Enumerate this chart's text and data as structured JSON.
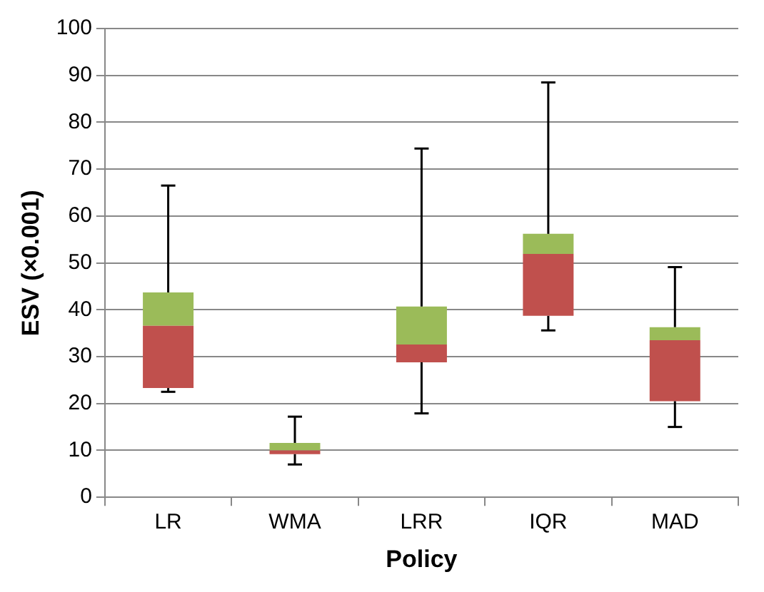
{
  "chart_data": {
    "type": "box",
    "xlabel": "Policy",
    "ylabel": "ESV (×0.001)",
    "categories": [
      "LR",
      "WMA",
      "LRR",
      "IQR",
      "MAD"
    ],
    "colors": [
      [
        "#c0504d",
        "#9bbb59"
      ],
      [
        "#c0504d",
        "#9bbb59"
      ],
      [
        "#c0504d",
        "#9bbb59"
      ],
      [
        "#c0504d",
        "#9bbb59"
      ],
      [
        "#c0504d",
        "#9bbb59"
      ]
    ],
    "boxes": [
      {
        "low": 22.5,
        "q1": 23.3,
        "median": 36.6,
        "q3": 43.7,
        "high": 66.5
      },
      {
        "low": 7.0,
        "q1": 9.2,
        "median": 10.0,
        "q3": 11.6,
        "high": 17.2
      },
      {
        "low": 17.9,
        "q1": 28.8,
        "median": 32.6,
        "q3": 40.7,
        "high": 74.4
      },
      {
        "low": 35.6,
        "q1": 38.7,
        "median": 51.9,
        "q3": 56.2,
        "high": 88.5
      },
      {
        "low": 15.0,
        "q1": 20.5,
        "median": 33.5,
        "q3": 36.3,
        "high": 49.1
      }
    ],
    "ylim": [
      0,
      100
    ],
    "yticks": [
      0,
      10,
      20,
      30,
      40,
      50,
      60,
      70,
      80,
      90,
      100
    ],
    "grid": "y",
    "legend": false
  }
}
